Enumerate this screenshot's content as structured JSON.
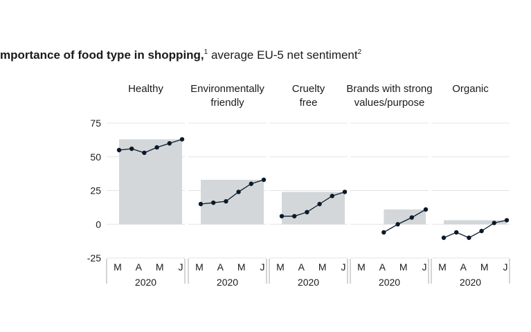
{
  "title": {
    "bold": "mportance of food type in shopping,",
    "sup1": "1",
    "rest": " average EU-5 net sentiment",
    "sup2": "2"
  },
  "colors": {
    "area": "#d3d7d9",
    "line": "#0b1a2a",
    "grid": "#e3e3e3",
    "axis": "#a8a8a8",
    "text": "#1a1a1a"
  },
  "chart_data": {
    "type": "area",
    "ylim": [
      -25,
      75
    ],
    "yticks": [
      75,
      50,
      25,
      0,
      -25
    ],
    "x": [
      "M",
      "A",
      "M",
      "J"
    ],
    "year_label": "2020",
    "grid": true,
    "panels": [
      {
        "title": [
          "Healthy"
        ],
        "points": [
          [
            "M",
            55
          ],
          [
            "M",
            56
          ],
          [
            "A",
            53
          ],
          [
            "A",
            57
          ],
          [
            "M",
            60
          ],
          [
            "J",
            63
          ]
        ]
      },
      {
        "title": [
          "Environmentally",
          "friendly"
        ],
        "points": [
          [
            "M",
            15
          ],
          [
            "M",
            16
          ],
          [
            "A",
            17
          ],
          [
            "A",
            24
          ],
          [
            "M",
            30
          ],
          [
            "J",
            33
          ]
        ]
      },
      {
        "title": [
          "Cruelty",
          "free"
        ],
        "points": [
          [
            "M",
            6
          ],
          [
            "M",
            6
          ],
          [
            "A",
            9
          ],
          [
            "A",
            15
          ],
          [
            "M",
            21
          ],
          [
            "J",
            24
          ]
        ]
      },
      {
        "title": [
          "Brands with strong",
          "values/purpose"
        ],
        "points": [
          [
            "A",
            -6
          ],
          [
            "A",
            0
          ],
          [
            "M",
            5
          ],
          [
            "J",
            11
          ]
        ]
      },
      {
        "title": [
          "Organic"
        ],
        "points": [
          [
            "M",
            -10
          ],
          [
            "M",
            -6
          ],
          [
            "A",
            -10
          ],
          [
            "A",
            -5
          ],
          [
            "M",
            1
          ],
          [
            "J",
            3
          ]
        ]
      }
    ]
  }
}
